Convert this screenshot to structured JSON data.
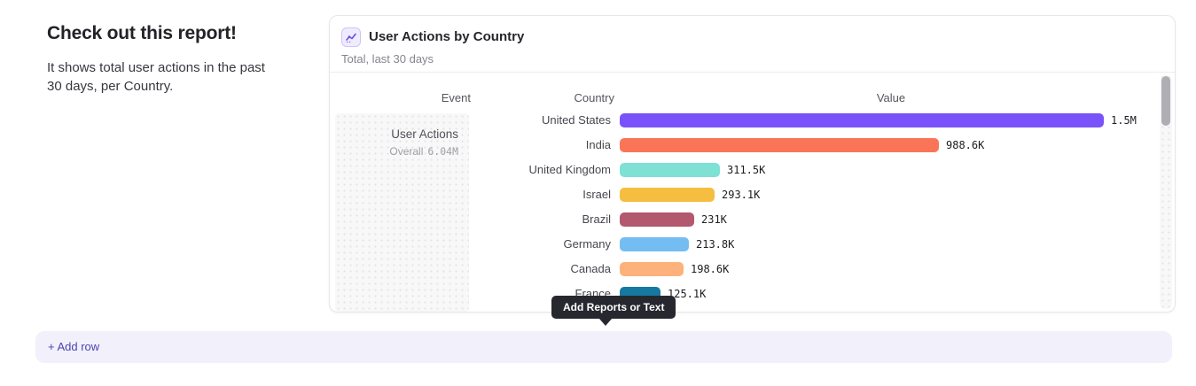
{
  "intro": {
    "title": "Check out this report!",
    "description": "It shows total user actions in the past 30 days, per Country."
  },
  "card": {
    "title": "User Actions by Country",
    "subtitle": "Total, last 30 days",
    "icon": "line-chart-icon"
  },
  "chart_data": {
    "type": "bar",
    "orientation": "horizontal",
    "title": "User Actions by Country",
    "subtitle": "Total, last 30 days",
    "columns": [
      "Event",
      "Country",
      "Value"
    ],
    "event_group": {
      "name": "User Actions",
      "overall_label": "Overall",
      "overall_value": "6.04M"
    },
    "categories": [
      "United States",
      "India",
      "United Kingdom",
      "Israel",
      "Brazil",
      "Germany",
      "Canada",
      "France"
    ],
    "values": [
      1500000,
      988600,
      311500,
      293100,
      231000,
      213800,
      198600,
      125100
    ],
    "value_labels": [
      "1.5M",
      "988.6K",
      "311.5K",
      "293.1K",
      "231K",
      "213.8K",
      "198.6K",
      "125.1K"
    ],
    "bar_colors": [
      "#7A52F9",
      "#FA7557",
      "#7FE0D4",
      "#F5BE41",
      "#B2586F",
      "#74BDF2",
      "#FDB27B",
      "#16799F"
    ],
    "xlim": [
      0,
      1500000
    ],
    "legend": "none",
    "grid": "off"
  },
  "tooltip": {
    "label": "Add Reports or Text"
  },
  "add_row": {
    "label": "+ Add row"
  },
  "colors": {
    "accent": "#6D4AEA",
    "tooltip_bg": "#27272F",
    "add_row_bg": "#F2F0FB",
    "add_row_text": "#4845B6"
  }
}
